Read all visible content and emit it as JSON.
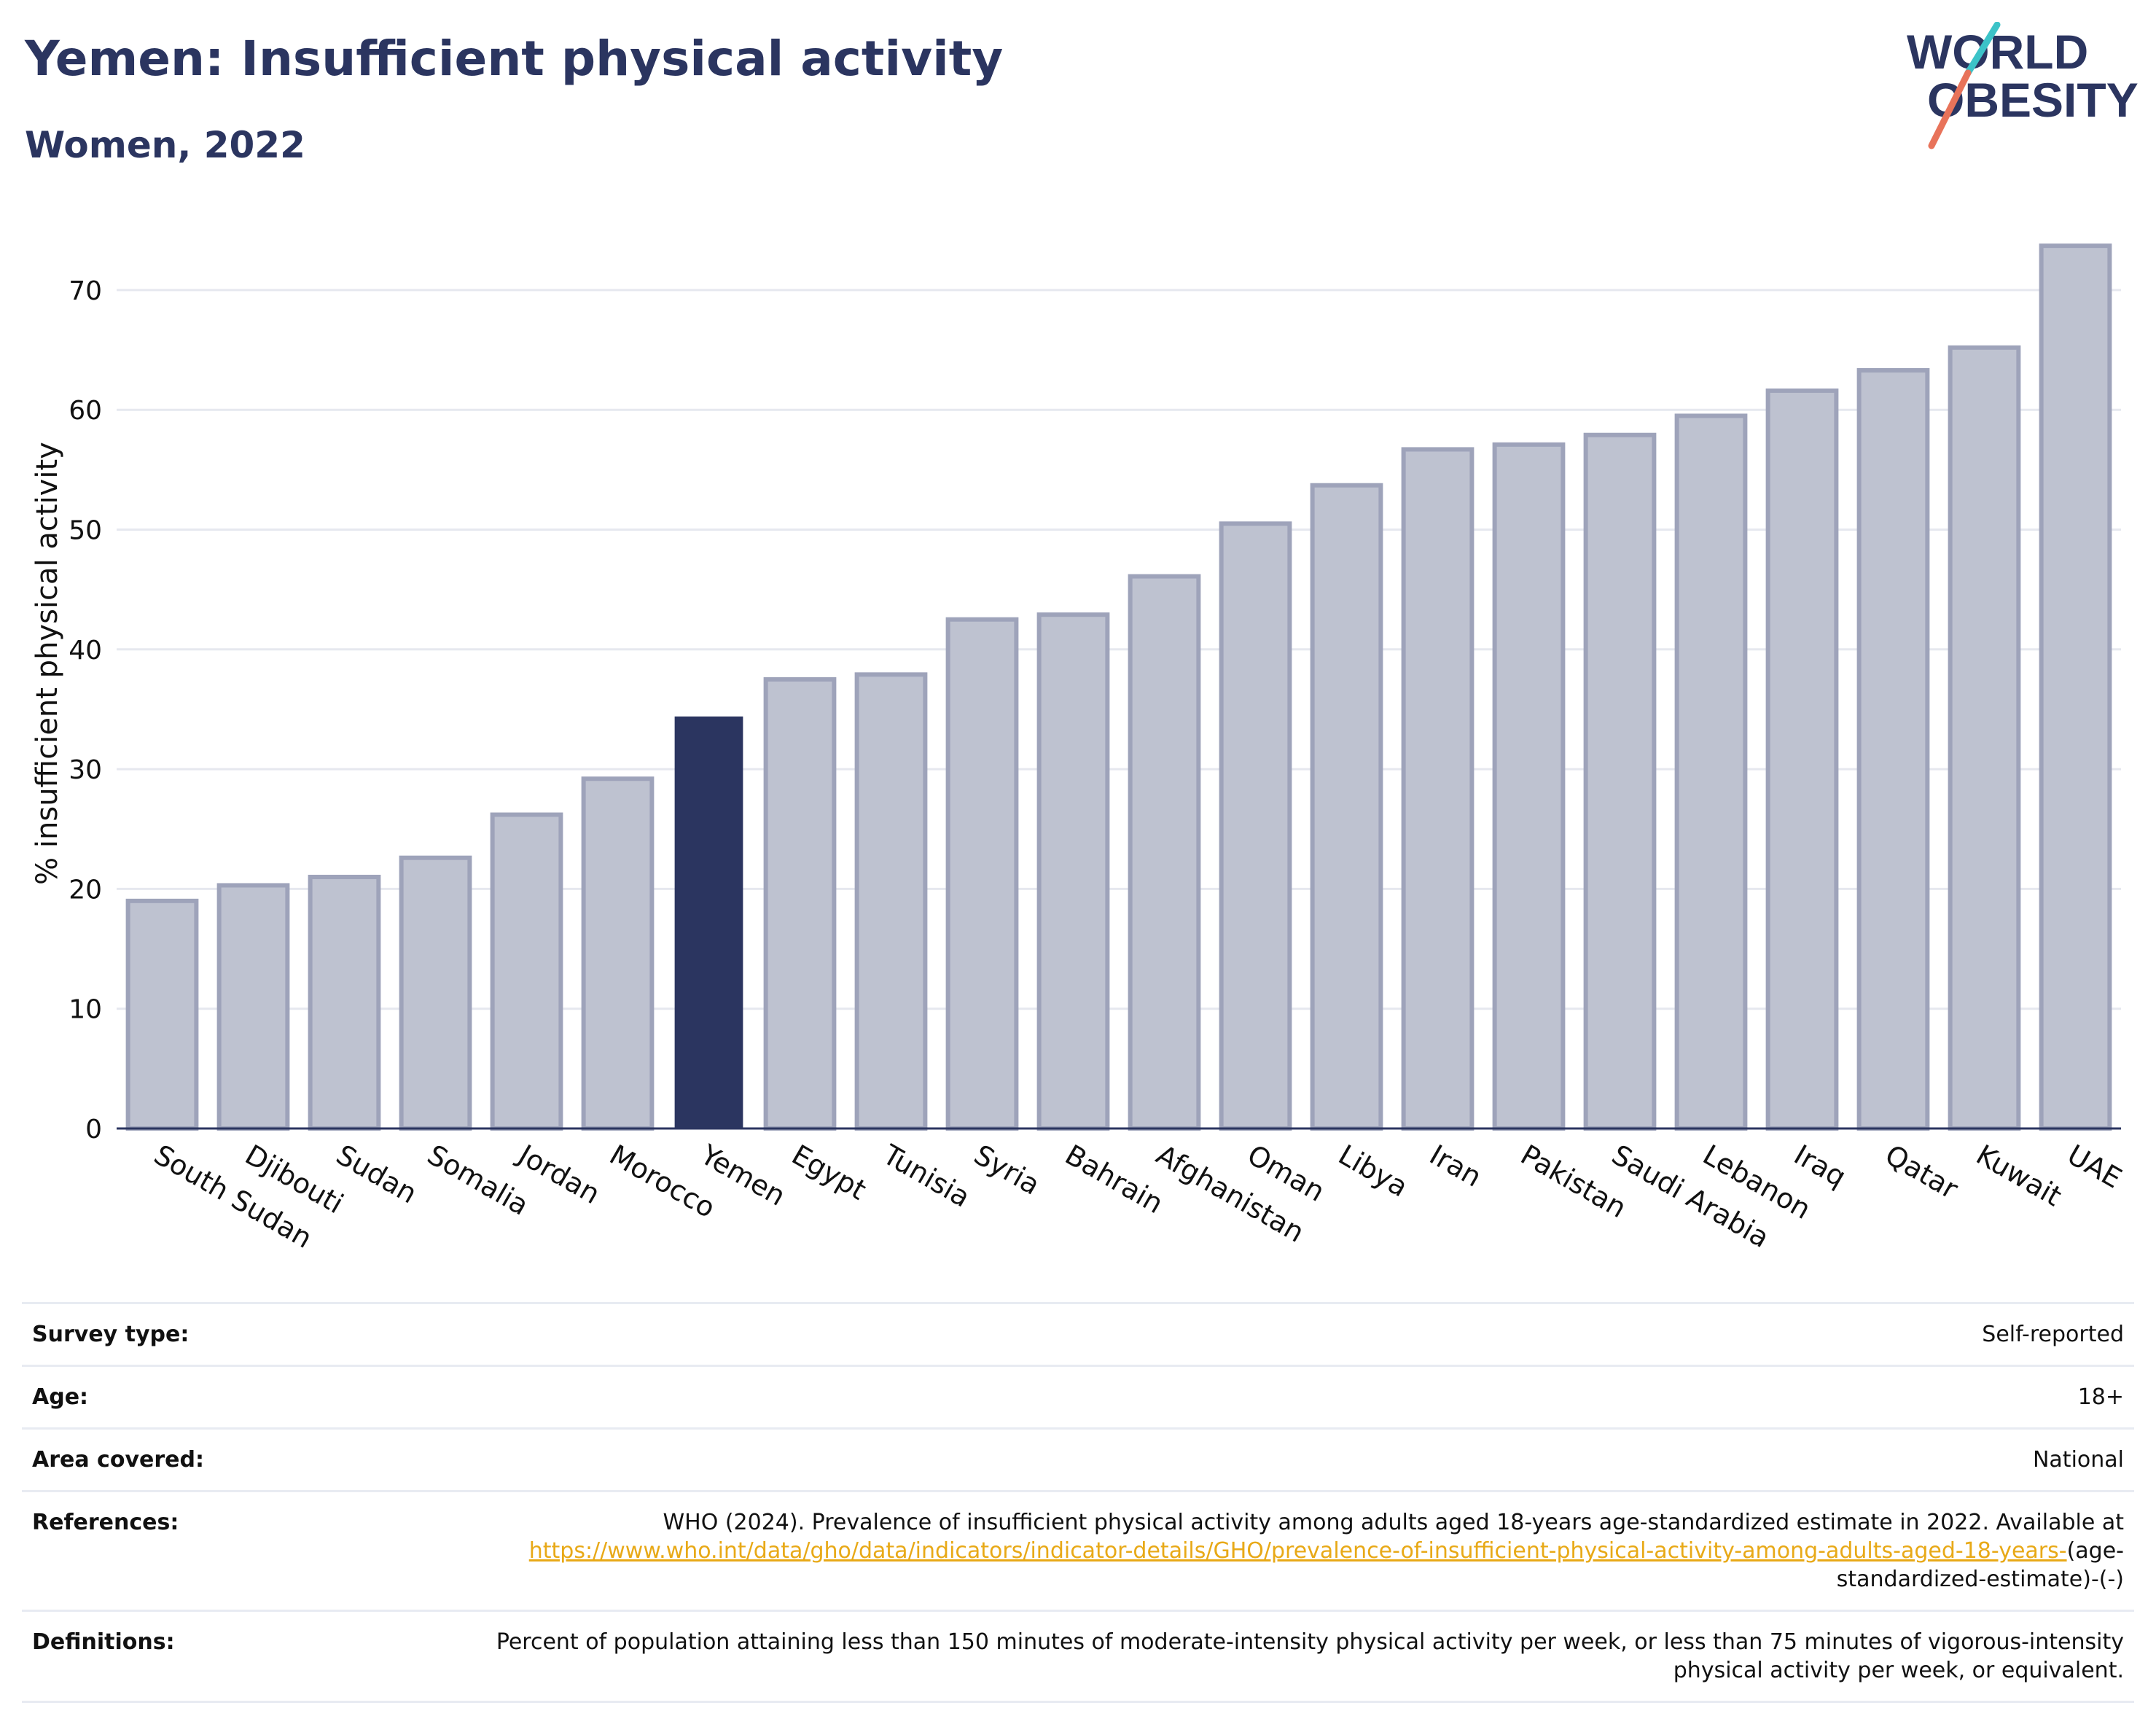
{
  "header": {
    "title": "Yemen: Insufficient physical activity",
    "subtitle": "Women, 2022"
  },
  "logo": {
    "line1": "WORLD",
    "line2": "OBESITY",
    "text_color": "#2b3560",
    "slash_colors": [
      "#e8735a",
      "#3cc3c8"
    ]
  },
  "colors": {
    "highlight_bar": "#2b3560",
    "other_bar_fill": "#bec2d0",
    "other_bar_stroke": "#9ea3ba",
    "grid": "#e6e8ef",
    "axis": "#2b3560"
  },
  "chart_data": {
    "type": "bar",
    "highlight": "Yemen",
    "ylabel": "% insufficient physical activity",
    "ylim": [
      0,
      75
    ],
    "yticks": [
      0,
      10,
      20,
      30,
      40,
      50,
      60,
      70
    ],
    "grid": true,
    "categories": [
      "South Sudan",
      "Djibouti",
      "Sudan",
      "Somalia",
      "Jordan",
      "Morocco",
      "Yemen",
      "Egypt",
      "Tunisia",
      "Syria",
      "Bahrain",
      "Afghanistan",
      "Oman",
      "Libya",
      "Iran",
      "Pakistan",
      "Saudi Arabia",
      "Lebanon",
      "Iraq",
      "Qatar",
      "Kuwait",
      "UAE"
    ],
    "values": [
      19.0,
      20.3,
      21.0,
      22.6,
      26.2,
      29.2,
      34.4,
      37.5,
      37.9,
      42.5,
      42.9,
      46.1,
      50.5,
      53.7,
      56.7,
      57.1,
      57.9,
      59.5,
      61.6,
      63.3,
      65.2,
      73.7
    ]
  },
  "info": {
    "survey_type": {
      "label": "Survey type:",
      "value": "Self-reported"
    },
    "age": {
      "label": "Age:",
      "value": "18+"
    },
    "area": {
      "label": "Area covered:",
      "value": "National"
    },
    "references": {
      "label": "References:",
      "text": "WHO (2024). Prevalence of insufficient physical activity among adults aged 18-years age-standardized estimate in 2022. Available at",
      "link": "https://www.who.int/data/gho/data/indicators/indicator-details/GHO/prevalence-of-insufficient-physical-activity-among-adults-aged-18-years-",
      "suffix": "(age-standardized-estimate)-(-)"
    },
    "definitions": {
      "label": "Definitions:",
      "value": "Percent of population attaining less than 150 minutes of moderate-intensity physical activity per week, or less than 75 minutes of vigorous-intensity physical activity per week, or equivalent."
    }
  }
}
